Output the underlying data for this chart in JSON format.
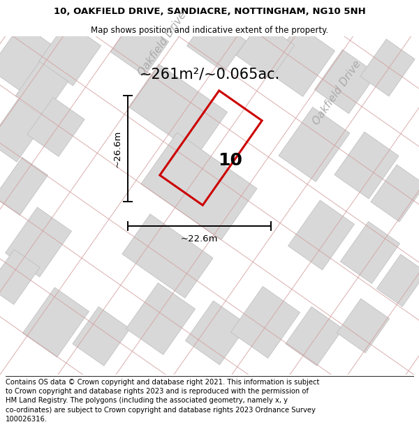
{
  "title_line1": "10, OAKFIELD DRIVE, SANDIACRE, NOTTINGHAM, NG10 5NH",
  "title_line2": "Map shows position and indicative extent of the property.",
  "footer_text": "Contains OS data © Crown copyright and database right 2021. This information is subject to Crown copyright and database rights 2023 and is reproduced with the permission of HM Land Registry. The polygons (including the associated geometry, namely x, y co-ordinates) are subject to Crown copyright and database rights 2023 Ordnance Survey 100026316.",
  "area_label": "~261m²/~0.065ac.",
  "width_label": "~22.6m",
  "height_label": "~26.6m",
  "property_number": "10",
  "map_bg": "#f0f0f0",
  "block_fill": "#d8d8d8",
  "block_stroke": "#bbbbbb",
  "road_line_color": "#d4a0a0",
  "red_plot_color": "#cc0000",
  "title_fontsize": 9.5,
  "subtitle_fontsize": 8.5,
  "footer_fontsize": 7.2,
  "road_label_fontsize": 11,
  "area_fontsize": 15,
  "dim_fontsize": 9.5,
  "number_fontsize": 18
}
